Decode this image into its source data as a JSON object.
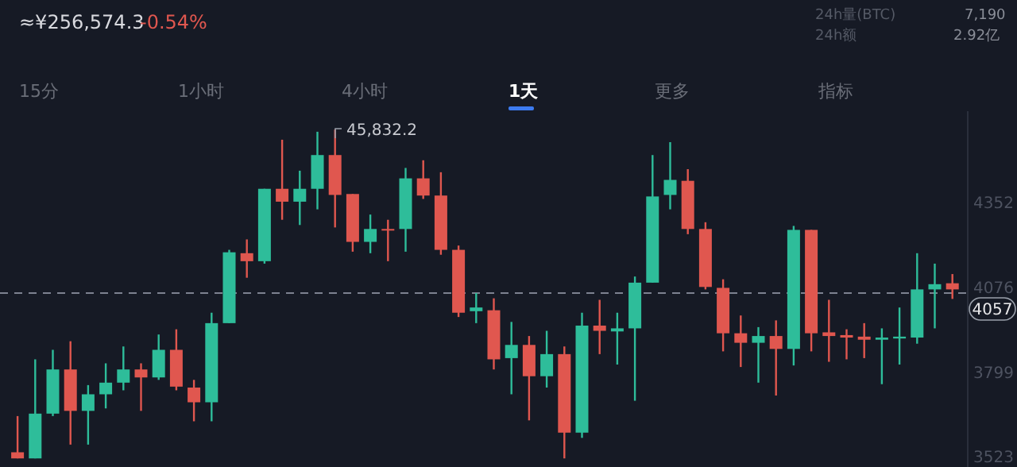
{
  "chart_data": {
    "type": "candlestick",
    "categories": [
      null,
      null,
      null,
      null,
      null,
      null,
      null,
      null,
      null,
      null,
      null,
      null,
      null,
      null,
      null,
      null,
      null,
      null,
      null,
      null,
      null,
      null,
      null,
      null,
      null,
      null,
      null,
      null,
      null,
      null,
      null,
      null,
      null,
      null,
      null,
      null,
      null,
      null,
      null,
      null,
      null,
      null,
      null,
      null,
      null,
      null,
      null,
      null,
      null,
      null,
      null,
      null,
      null,
      null
    ],
    "ohlc": [
      [
        3538,
        3656,
        3518,
        3518
      ],
      [
        3518,
        3841,
        3518,
        3664
      ],
      [
        3664,
        3872,
        3656,
        3808
      ],
      [
        3808,
        3900,
        3563,
        3673
      ],
      [
        3673,
        3757,
        3563,
        3727
      ],
      [
        3727,
        3828,
        3681,
        3765
      ],
      [
        3765,
        3883,
        3740,
        3808
      ],
      [
        3808,
        3828,
        3673,
        3782
      ],
      [
        3782,
        3922,
        3774,
        3872
      ],
      [
        3872,
        3939,
        3740,
        3752
      ],
      [
        3749,
        3774,
        3639,
        3701
      ],
      [
        3701,
        3993,
        3639,
        3959
      ],
      [
        3959,
        4198,
        3959,
        4190
      ],
      [
        4187,
        4232,
        4107,
        4161
      ],
      [
        4161,
        4397,
        4153,
        4397
      ],
      [
        4397,
        4557,
        4296,
        4355
      ],
      [
        4355,
        4456,
        4279,
        4397
      ],
      [
        4397,
        4583,
        4330,
        4507
      ],
      [
        4507,
        4590,
        4271,
        4377
      ],
      [
        4380,
        4380,
        4192,
        4224
      ],
      [
        4224,
        4313,
        4187,
        4266
      ],
      [
        4266,
        4296,
        4161,
        4263
      ],
      [
        4266,
        4465,
        4192,
        4431
      ],
      [
        4431,
        4490,
        4364,
        4375
      ],
      [
        4375,
        4451,
        4182,
        4198
      ],
      [
        4198,
        4212,
        3979,
        3993
      ],
      [
        3998,
        4057,
        3959,
        4010
      ],
      [
        4001,
        4040,
        3808,
        3841
      ],
      [
        3845,
        3963,
        3727,
        3888
      ],
      [
        3888,
        3917,
        3642,
        3786
      ],
      [
        3786,
        3934,
        3749,
        3858
      ],
      [
        3858,
        3883,
        3518,
        3602
      ],
      [
        3602,
        3993,
        3585,
        3951
      ],
      [
        3951,
        4035,
        3858,
        3934
      ],
      [
        3932,
        3993,
        3824,
        3942
      ],
      [
        3942,
        4111,
        3706,
        4091
      ],
      [
        4091,
        4507,
        4091,
        4372
      ],
      [
        4377,
        4549,
        4330,
        4426
      ],
      [
        4423,
        4461,
        4249,
        4266
      ],
      [
        4266,
        4288,
        4069,
        4077
      ],
      [
        4074,
        4102,
        3867,
        3926
      ],
      [
        3926,
        3984,
        3816,
        3895
      ],
      [
        3895,
        3946,
        3765,
        3917
      ],
      [
        3917,
        3968,
        3723,
        3875
      ],
      [
        3875,
        4276,
        3821,
        4263
      ],
      [
        4263,
        4263,
        3867,
        3926
      ],
      [
        3929,
        4035,
        3833,
        3917
      ],
      [
        3920,
        3939,
        3841,
        3912
      ],
      [
        3915,
        3959,
        3845,
        3905
      ],
      [
        3905,
        3942,
        3760,
        3912
      ],
      [
        3909,
        4010,
        3824,
        3915
      ],
      [
        3912,
        4187,
        3892,
        4069
      ],
      [
        4069,
        4153,
        3942,
        4086
      ],
      [
        4089,
        4119,
        4038,
        4069
      ]
    ],
    "ylim": [
      3490,
      4650
    ],
    "yticks": [
      4352,
      4076,
      3799,
      3523
    ],
    "ref_lines": [
      {
        "axis": "y",
        "value": 4057,
        "label": "4057",
        "line_style": "dashed"
      }
    ],
    "tick_labels": "y",
    "annotations": [
      "≈¥256,574.3",
      "-0.54%",
      "24h量(BTC)",
      "7,190",
      "24h额",
      "2.92亿",
      "15分",
      "1小时",
      "4小时",
      "1天",
      "更多",
      "指标",
      "45,832.2"
    ]
  }
}
